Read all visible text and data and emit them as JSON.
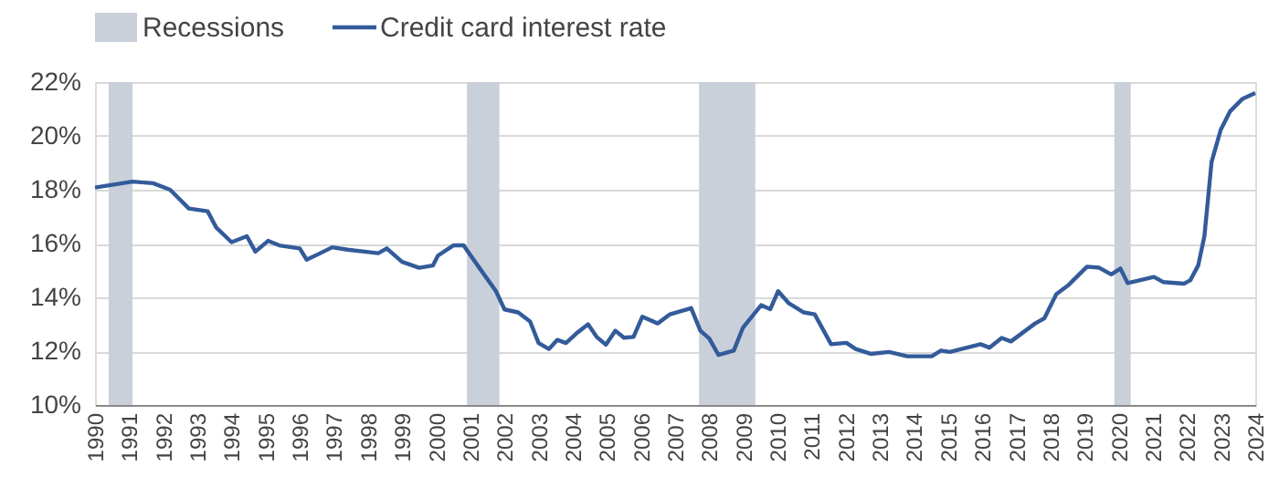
{
  "chart_data": {
    "type": "line",
    "legend": "top left",
    "grid": "y",
    "xlim": [
      1990,
      2024
    ],
    "xticks": [
      1990,
      1991,
      1992,
      1993,
      1994,
      1995,
      1996,
      1997,
      1998,
      1999,
      2000,
      2001,
      2002,
      2003,
      2004,
      2005,
      2006,
      2007,
      2008,
      2009,
      2010,
      2011,
      2012,
      2013,
      2014,
      2015,
      2016,
      2017,
      2018,
      2019,
      2020,
      2021,
      2022,
      2023,
      2024
    ],
    "ylim": [
      10,
      22
    ],
    "yticks": [
      {
        "value": 10,
        "label": "10%"
      },
      {
        "value": 12,
        "label": "12%"
      },
      {
        "value": 14,
        "label": "14%"
      },
      {
        "value": 16,
        "label": "16%"
      },
      {
        "value": 18,
        "label": "18%"
      },
      {
        "value": 20,
        "label": "20%"
      },
      {
        "value": 22,
        "label": "22%"
      }
    ],
    "bands": [
      {
        "axis": "x",
        "from": 1990.4,
        "to": 1991.1,
        "label": "Recessions",
        "color": "#c9d0da"
      },
      {
        "axis": "x",
        "from": 2000.9,
        "to": 2001.85,
        "color": "#c9d0da"
      },
      {
        "axis": "x",
        "from": 2007.7,
        "to": 2009.35,
        "color": "#c9d0da"
      },
      {
        "axis": "x",
        "from": 2019.87,
        "to": 2020.35,
        "color": "#c9d0da"
      }
    ],
    "series": [
      {
        "name": "Credit card interest rate",
        "color": "#335b9a",
        "x": [
          1990.0,
          1990.8,
          1991.1,
          1991.7,
          1992.2,
          1992.75,
          1993.3,
          1993.55,
          1994.0,
          1994.45,
          1994.7,
          1995.07,
          1995.4,
          1996.0,
          1996.2,
          1996.6,
          1996.95,
          1997.4,
          1997.9,
          1998.3,
          1998.55,
          1999.0,
          1999.5,
          1999.9,
          2000.05,
          2000.5,
          2000.8,
          2001.3,
          2001.75,
          2002.0,
          2002.4,
          2002.75,
          2003.0,
          2003.3,
          2003.55,
          2003.8,
          2004.1,
          2004.45,
          2004.7,
          2004.97,
          2005.25,
          2005.5,
          2005.78,
          2006.04,
          2006.49,
          2006.85,
          2007.47,
          2007.74,
          2008.0,
          2008.27,
          2008.72,
          2008.99,
          2009.52,
          2009.79,
          2010.02,
          2010.33,
          2010.77,
          2011.09,
          2011.57,
          2012.02,
          2012.29,
          2012.73,
          2013.27,
          2013.8,
          2014.52,
          2014.79,
          2015.05,
          2015.95,
          2016.21,
          2016.57,
          2016.84,
          2017.55,
          2017.82,
          2018.17,
          2018.53,
          2019.07,
          2019.43,
          2019.78,
          2020.05,
          2020.26,
          2021.03,
          2021.3,
          2021.92,
          2022.1,
          2022.33,
          2022.51,
          2022.72,
          2022.99,
          2023.26,
          2023.62,
          2024.0
        ],
        "values": [
          18.08,
          18.24,
          18.3,
          18.24,
          18.0,
          17.3,
          17.2,
          16.6,
          16.05,
          16.27,
          15.7,
          16.1,
          15.93,
          15.82,
          15.4,
          15.64,
          15.86,
          15.77,
          15.7,
          15.64,
          15.82,
          15.32,
          15.1,
          15.18,
          15.55,
          15.93,
          15.93,
          15.03,
          14.23,
          13.55,
          13.44,
          13.1,
          12.3,
          12.08,
          12.42,
          12.3,
          12.65,
          13.0,
          12.53,
          12.24,
          12.76,
          12.5,
          12.53,
          13.28,
          13.03,
          13.37,
          13.6,
          12.76,
          12.47,
          11.86,
          12.02,
          12.88,
          13.71,
          13.56,
          14.23,
          13.78,
          13.44,
          13.37,
          12.26,
          12.31,
          12.08,
          11.9,
          11.97,
          11.81,
          11.81,
          12.02,
          11.97,
          12.26,
          12.13,
          12.49,
          12.36,
          13.03,
          13.22,
          14.12,
          14.46,
          15.14,
          15.1,
          14.85,
          15.07,
          14.53,
          14.76,
          14.57,
          14.51,
          14.64,
          15.19,
          16.27,
          19.03,
          20.23,
          20.91,
          21.37,
          21.59
        ]
      }
    ]
  }
}
